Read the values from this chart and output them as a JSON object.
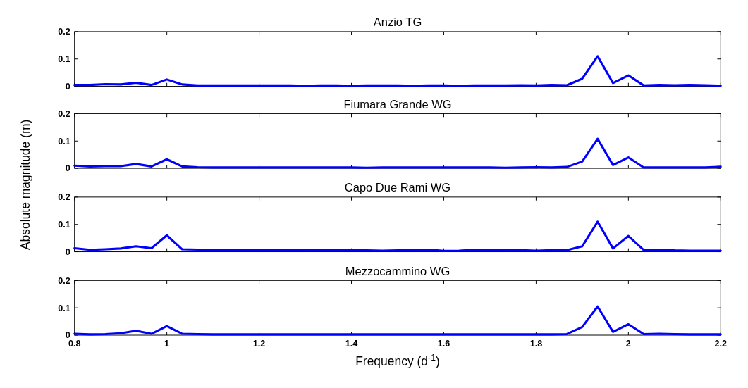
{
  "chart_data": [
    {
      "type": "line",
      "title": "Anzio TG",
      "ylabel": "Absolute magnitude (m)",
      "xlim": [
        0.8,
        2.2
      ],
      "xticks": [
        0.8,
        1,
        1.2,
        1.4,
        1.6,
        1.8,
        2,
        2.2
      ],
      "ylim": [
        0,
        0.2
      ],
      "yticks": [
        0,
        0.1,
        0.2
      ],
      "tick_labels": "y",
      "x": [
        0.8,
        0.8333,
        0.8667,
        0.9,
        0.9333,
        0.9667,
        1,
        1.0333,
        1.0667,
        1.1,
        1.1333,
        1.1667,
        1.2,
        1.2333,
        1.2667,
        1.3,
        1.3333,
        1.3667,
        1.4,
        1.4333,
        1.4667,
        1.5,
        1.5333,
        1.5667,
        1.6,
        1.6333,
        1.6667,
        1.7,
        1.7333,
        1.7667,
        1.8,
        1.8333,
        1.8667,
        1.9,
        1.9333,
        1.9667,
        2,
        2.0333,
        2.0667,
        2.1,
        2.1333,
        2.1667,
        2.2
      ],
      "series": [
        {
          "color": "#0000ff",
          "values": [
            0.005,
            0.005,
            0.008,
            0.007,
            0.013,
            0.005,
            0.025,
            0.007,
            0.003,
            0.003,
            0.003,
            0.003,
            0.003,
            0.003,
            0.003,
            0.002,
            0.003,
            0.003,
            0.002,
            0.003,
            0.003,
            0.003,
            0.002,
            0.003,
            0.003,
            0.002,
            0.003,
            0.003,
            0.003,
            0.004,
            0.003,
            0.005,
            0.004,
            0.028,
            0.11,
            0.012,
            0.04,
            0.003,
            0.005,
            0.004,
            0.005,
            0.004,
            0.002
          ]
        }
      ]
    },
    {
      "type": "line",
      "title": "Fiumara Grande WG",
      "xlim": [
        0.8,
        2.2
      ],
      "xticks": [
        0.8,
        1,
        1.2,
        1.4,
        1.6,
        1.8,
        2,
        2.2
      ],
      "ylim": [
        0,
        0.2
      ],
      "yticks": [
        0,
        0.1,
        0.2
      ],
      "tick_labels": "y",
      "x": [
        0.8,
        0.8333,
        0.8667,
        0.9,
        0.9333,
        0.9667,
        1,
        1.0333,
        1.0667,
        1.1,
        1.1333,
        1.1667,
        1.2,
        1.2333,
        1.2667,
        1.3,
        1.3333,
        1.3667,
        1.4,
        1.4333,
        1.4667,
        1.5,
        1.5333,
        1.5667,
        1.6,
        1.6333,
        1.6667,
        1.7,
        1.7333,
        1.7667,
        1.8,
        1.8333,
        1.8667,
        1.9,
        1.9333,
        1.9667,
        2,
        2.0333,
        2.0667,
        2.1,
        2.1333,
        2.1667,
        2.2
      ],
      "series": [
        {
          "color": "#0000ff",
          "values": [
            0.01,
            0.007,
            0.008,
            0.008,
            0.016,
            0.007,
            0.033,
            0.007,
            0.004,
            0.003,
            0.003,
            0.003,
            0.003,
            0.003,
            0.003,
            0.003,
            0.003,
            0.003,
            0.003,
            0.002,
            0.003,
            0.003,
            0.003,
            0.003,
            0.003,
            0.003,
            0.003,
            0.003,
            0.002,
            0.003,
            0.004,
            0.003,
            0.005,
            0.025,
            0.108,
            0.012,
            0.04,
            0.003,
            0.003,
            0.003,
            0.003,
            0.003,
            0.006
          ]
        }
      ]
    },
    {
      "type": "line",
      "title": "Capo Due Rami WG",
      "xlim": [
        0.8,
        2.2
      ],
      "xticks": [
        0.8,
        1,
        1.2,
        1.4,
        1.6,
        1.8,
        2,
        2.2
      ],
      "ylim": [
        0,
        0.2
      ],
      "yticks": [
        0,
        0.1,
        0.2
      ],
      "tick_labels": "y",
      "x": [
        0.8,
        0.8333,
        0.8667,
        0.9,
        0.9333,
        0.9667,
        1,
        1.0333,
        1.0667,
        1.1,
        1.1333,
        1.1667,
        1.2,
        1.2333,
        1.2667,
        1.3,
        1.3333,
        1.3667,
        1.4,
        1.4333,
        1.4667,
        1.5,
        1.5333,
        1.5667,
        1.6,
        1.6333,
        1.6667,
        1.7,
        1.7333,
        1.7667,
        1.8,
        1.8333,
        1.8667,
        1.9,
        1.9333,
        1.9667,
        2,
        2.0333,
        2.0667,
        2.1,
        2.1333,
        2.1667,
        2.2
      ],
      "series": [
        {
          "color": "#0000ff",
          "values": [
            0.013,
            0.007,
            0.009,
            0.012,
            0.02,
            0.013,
            0.06,
            0.009,
            0.008,
            0.006,
            0.008,
            0.008,
            0.007,
            0.006,
            0.005,
            0.005,
            0.006,
            0.006,
            0.005,
            0.005,
            0.004,
            0.005,
            0.005,
            0.008,
            0.003,
            0.004,
            0.007,
            0.005,
            0.005,
            0.006,
            0.004,
            0.006,
            0.006,
            0.02,
            0.11,
            0.012,
            0.058,
            0.006,
            0.008,
            0.005,
            0.004,
            0.004,
            0.004
          ]
        }
      ]
    },
    {
      "type": "line",
      "title": "Mezzocammino WG",
      "xlabel": "Frequency (d$^{-1}$)",
      "xlim": [
        0.8,
        2.2
      ],
      "xticks": [
        0.8,
        1,
        1.2,
        1.4,
        1.6,
        1.8,
        2,
        2.2
      ],
      "ylim": [
        0,
        0.2
      ],
      "yticks": [
        0,
        0.1,
        0.2
      ],
      "x": [
        0.8,
        0.8333,
        0.8667,
        0.9,
        0.9333,
        0.9667,
        1,
        1.0333,
        1.0667,
        1.1,
        1.1333,
        1.1667,
        1.2,
        1.2333,
        1.2667,
        1.3,
        1.3333,
        1.3667,
        1.4,
        1.4333,
        1.4667,
        1.5,
        1.5333,
        1.5667,
        1.6,
        1.6333,
        1.6667,
        1.7,
        1.7333,
        1.7667,
        1.8,
        1.8333,
        1.8667,
        1.9,
        1.9333,
        1.9667,
        2,
        2.0333,
        2.0667,
        2.1,
        2.1333,
        2.1667,
        2.2
      ],
      "series": [
        {
          "color": "#0000ff",
          "values": [
            0.005,
            0.003,
            0.004,
            0.007,
            0.016,
            0.005,
            0.033,
            0.005,
            0.004,
            0.003,
            0.003,
            0.003,
            0.003,
            0.003,
            0.003,
            0.003,
            0.003,
            0.003,
            0.003,
            0.003,
            0.003,
            0.003,
            0.003,
            0.003,
            0.003,
            0.003,
            0.003,
            0.003,
            0.003,
            0.003,
            0.003,
            0.003,
            0.004,
            0.03,
            0.105,
            0.012,
            0.04,
            0.004,
            0.005,
            0.004,
            0.003,
            0.003,
            0.003
          ]
        }
      ]
    }
  ]
}
